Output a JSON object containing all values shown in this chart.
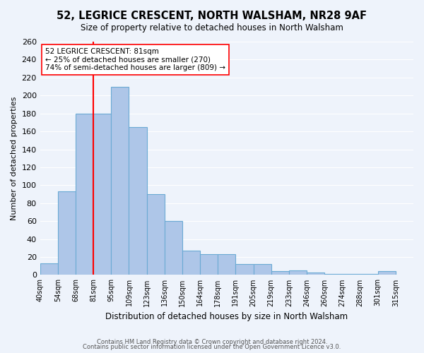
{
  "title": "52, LEGRICE CRESCENT, NORTH WALSHAM, NR28 9AF",
  "subtitle": "Size of property relative to detached houses in North Walsham",
  "xlabel": "Distribution of detached houses by size in North Walsham",
  "ylabel": "Number of detached properties",
  "bin_edges": [
    "40sqm",
    "54sqm",
    "68sqm",
    "81sqm",
    "95sqm",
    "109sqm",
    "123sqm",
    "136sqm",
    "150sqm",
    "164sqm",
    "178sqm",
    "191sqm",
    "205sqm",
    "219sqm",
    "233sqm",
    "246sqm",
    "260sqm",
    "274sqm",
    "288sqm",
    "301sqm",
    "315sqm"
  ],
  "bar_heights": [
    13,
    93,
    180,
    180,
    210,
    165,
    90,
    60,
    27,
    23,
    23,
    12,
    12,
    4,
    5,
    3,
    1,
    1,
    1,
    4
  ],
  "bar_color": "#aec6e8",
  "bar_edge_color": "#6aaad4",
  "property_line_x": 3,
  "ylim": [
    0,
    260
  ],
  "yticks": [
    0,
    20,
    40,
    60,
    80,
    100,
    120,
    140,
    160,
    180,
    200,
    220,
    240,
    260
  ],
  "annotation_title": "52 LEGRICE CRESCENT: 81sqm",
  "annotation_line1": "← 25% of detached houses are smaller (270)",
  "annotation_line2": "74% of semi-detached houses are larger (809) →",
  "footer1": "Contains HM Land Registry data © Crown copyright and database right 2024.",
  "footer2": "Contains public sector information licensed under the Open Government Licence v3.0.",
  "background_color": "#eef3fb",
  "plot_bg_color": "#eef3fb"
}
